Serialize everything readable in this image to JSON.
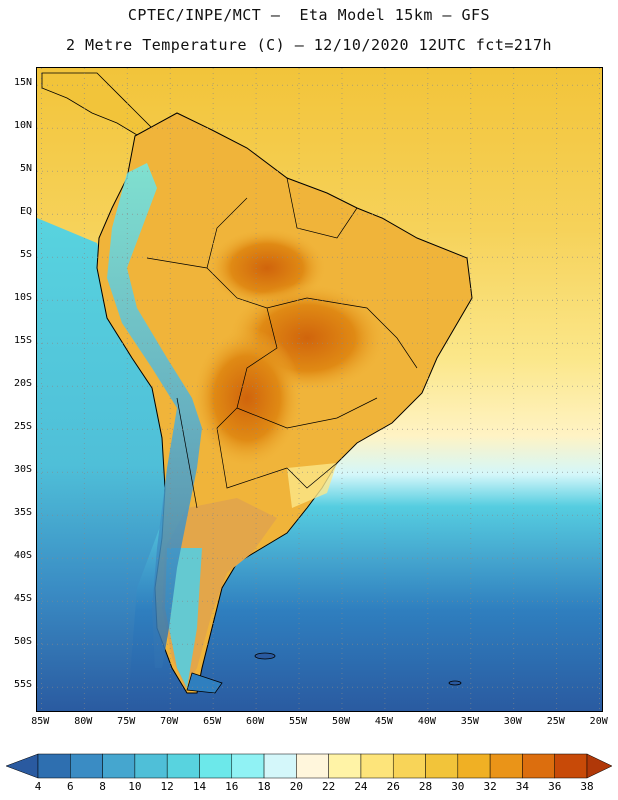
{
  "title": {
    "line1": "CPTEC/INPE/MCT –  Eta Model 15km – GFS",
    "line2": "2 Metre Temperature (C) – 12/10/2020 12UTC fct=217h"
  },
  "map": {
    "lat_labels": [
      "15N",
      "10N",
      "5N",
      "EQ",
      "5S",
      "10S",
      "15S",
      "20S",
      "25S",
      "30S",
      "35S",
      "40S",
      "45S",
      "50S",
      "55S"
    ],
    "lon_labels": [
      "85W",
      "80W",
      "75W",
      "70W",
      "65W",
      "60W",
      "55W",
      "50W",
      "45W",
      "40W",
      "35W",
      "30W",
      "25W",
      "20W"
    ],
    "lat_range": [
      17,
      -58
    ],
    "lon_range": [
      -85.5,
      -19.5
    ],
    "grid": "dotted",
    "colors": {
      "ocean_north": "#f2c43a",
      "ocean_mid": "#fbe78a",
      "ocean_south_warm": "#fff3c4",
      "ocean_cool": "#55cde0",
      "ocean_cold": "#2f7fbf",
      "ocean_deep": "#2a5aa0",
      "land_hot": "#e08a14",
      "land_very_hot": "#d0640c",
      "land_warm": "#f0b43a",
      "andes": "#4fb0d8",
      "outline": "#000000"
    }
  },
  "colorbar": {
    "ticks": [
      "4",
      "6",
      "8",
      "10",
      "12",
      "14",
      "16",
      "18",
      "20",
      "22",
      "24",
      "26",
      "28",
      "30",
      "32",
      "34",
      "36",
      "38"
    ],
    "colors": [
      "#2a5aa0",
      "#2e6fb0",
      "#3a8cc4",
      "#45a6cf",
      "#4fbfd8",
      "#58d3df",
      "#6ce8ea",
      "#90f2f4",
      "#d4f7fa",
      "#fff6dc",
      "#fff3a6",
      "#fde47a",
      "#f8d458",
      "#f2c43a",
      "#f0b024",
      "#ea9418",
      "#dc6e0e",
      "#c84a08",
      "#b03808"
    ]
  }
}
